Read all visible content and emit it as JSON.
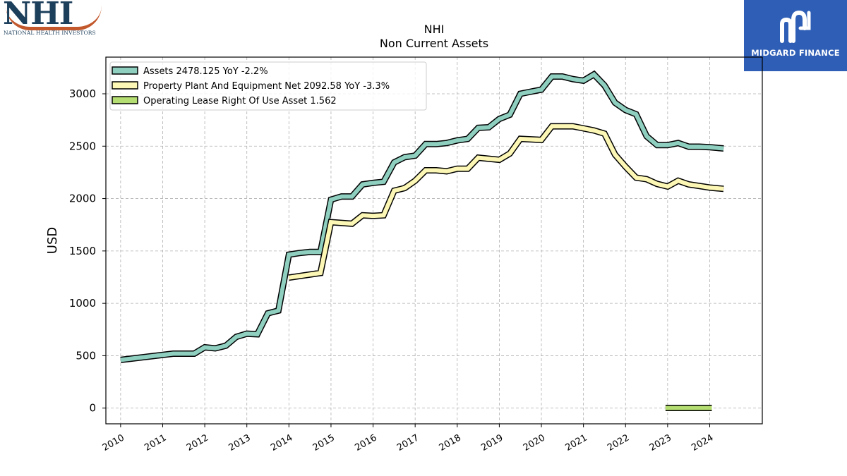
{
  "header": {
    "logo_left": {
      "name": "NHI",
      "subtitle": "NATIONAL HEALTH INVESTORS",
      "brand_color": "#1c3f5b",
      "accent_color": "#c2582c"
    },
    "logo_right": {
      "name": "MIDGARD FINANCE",
      "background_color": "#2f5eb6"
    }
  },
  "chart_data": {
    "type": "line",
    "title": "NHI",
    "subtitle": "Non Current  Assets",
    "ylabel": "USD",
    "xlabel": "",
    "ylim": [
      -150,
      3350
    ],
    "xlim": [
      2009.65,
      2025.25
    ],
    "yticks": [
      0,
      500,
      1000,
      1500,
      2000,
      2500,
      3000
    ],
    "xticks": [
      "2010",
      "2011",
      "2012",
      "2013",
      "2014",
      "2015",
      "2016",
      "2017",
      "2018",
      "2019",
      "2020",
      "2021",
      "2022",
      "2023",
      "2024"
    ],
    "grid": true,
    "legend_position": "top-left",
    "series": [
      {
        "name": "Assets  2478.125 YoY -2.2%",
        "color": "#8ecfc0",
        "x": [
          2010.0,
          2011.25,
          2011.5,
          2011.75,
          2012.0,
          2012.25,
          2012.5,
          2012.75,
          2013.0,
          2013.25,
          2013.5,
          2013.75,
          2014.0,
          2014.25,
          2014.5,
          2014.75,
          2015.0,
          2015.25,
          2015.5,
          2015.75,
          2016.0,
          2016.25,
          2016.5,
          2016.75,
          2017.0,
          2017.25,
          2017.5,
          2017.75,
          2018.0,
          2018.25,
          2018.5,
          2018.75,
          2019.0,
          2019.25,
          2019.5,
          2019.75,
          2020.0,
          2020.25,
          2020.5,
          2020.75,
          2021.0,
          2021.25,
          2021.5,
          2021.75,
          2022.0,
          2022.25,
          2022.5,
          2022.75,
          2023.0,
          2023.25,
          2023.5,
          2023.75,
          2024.0,
          2024.33
        ],
        "y": [
          460,
          520,
          520,
          520,
          580,
          570,
          595,
          680,
          710,
          705,
          905,
          930,
          1465,
          1480,
          1490,
          1490,
          1990,
          2020,
          2020,
          2135,
          2150,
          2160,
          2345,
          2395,
          2410,
          2520,
          2520,
          2530,
          2555,
          2570,
          2675,
          2680,
          2760,
          2800,
          3000,
          3020,
          3040,
          3165,
          3165,
          3140,
          3125,
          3185,
          3080,
          2915,
          2845,
          2805,
          2595,
          2510,
          2510,
          2530,
          2495,
          2495,
          2490,
          2478.125
        ]
      },
      {
        "name": "Property Plant And Equipment Net  2092.58 YoY -3.3%",
        "color": "#fcf7b4",
        "x": [
          2014.0,
          2014.75,
          2015.0,
          2015.5,
          2015.75,
          2016.0,
          2016.25,
          2016.5,
          2016.75,
          2017.0,
          2017.25,
          2017.5,
          2017.75,
          2018.0,
          2018.25,
          2018.5,
          2018.75,
          2019.0,
          2019.25,
          2019.5,
          2019.75,
          2020.0,
          2020.25,
          2020.5,
          2020.75,
          2021.0,
          2021.25,
          2021.5,
          2021.75,
          2022.0,
          2022.25,
          2022.5,
          2022.75,
          2023.0,
          2023.25,
          2023.5,
          2023.75,
          2024.0,
          2024.33
        ],
        "y": [
          1245,
          1290,
          1775,
          1760,
          1840,
          1835,
          1840,
          2075,
          2100,
          2170,
          2270,
          2270,
          2260,
          2285,
          2285,
          2390,
          2380,
          2370,
          2430,
          2570,
          2565,
          2560,
          2690,
          2690,
          2690,
          2670,
          2650,
          2620,
          2420,
          2305,
          2200,
          2185,
          2140,
          2115,
          2170,
          2135,
          2120,
          2105,
          2092.58
        ]
      },
      {
        "name": "Operating Lease Right Of Use Asset  1.562",
        "color": "#b5de72",
        "x": [
          2022.95,
          2024.05
        ],
        "y": [
          1.562,
          1.562
        ]
      }
    ]
  }
}
